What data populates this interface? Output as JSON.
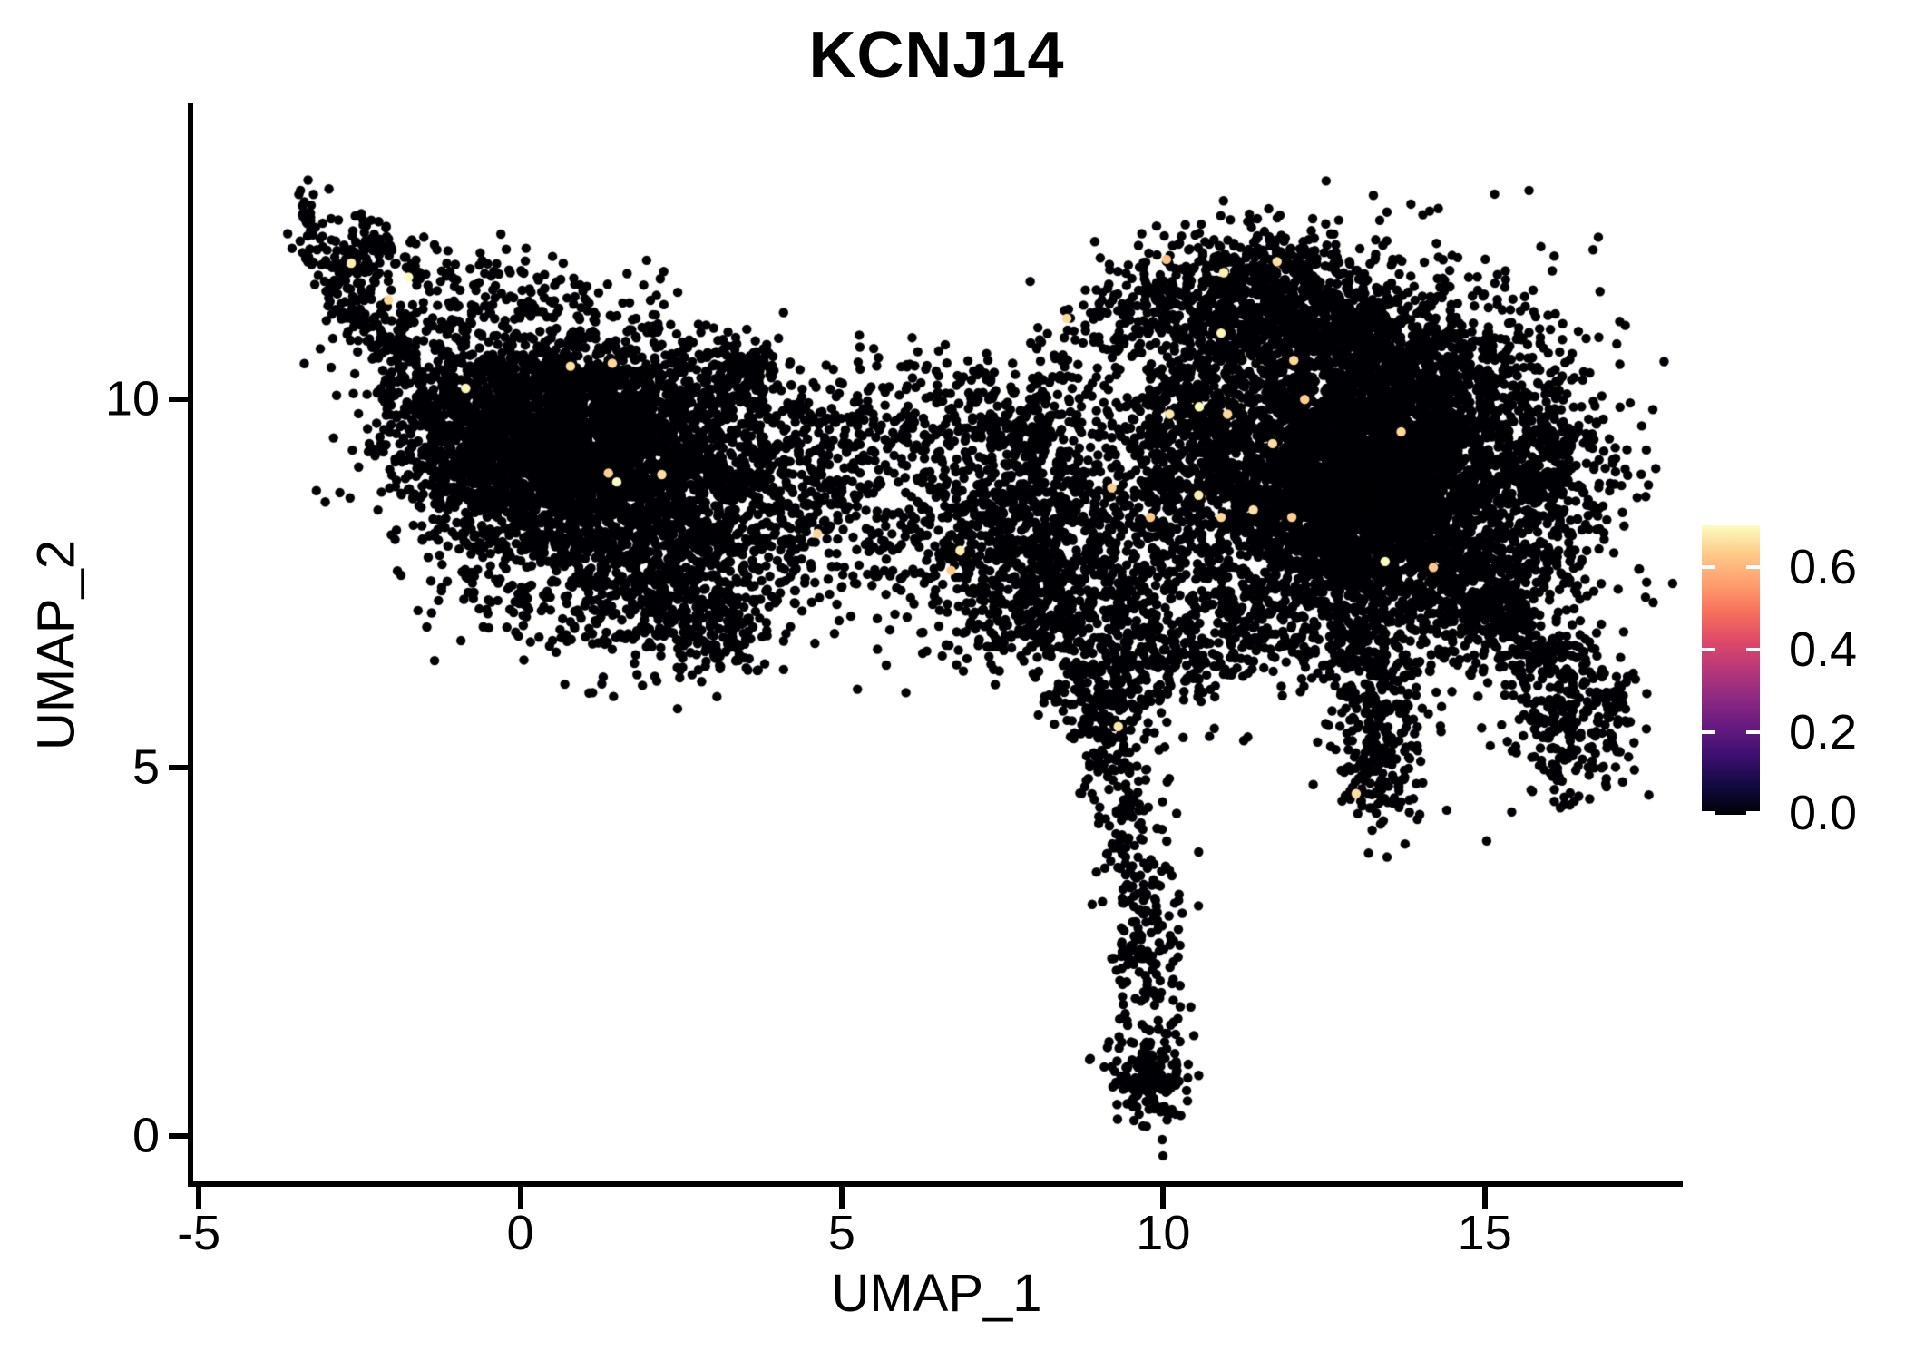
{
  "title": "KCNJ14",
  "chart_data": {
    "type": "scatter",
    "title": "KCNJ14",
    "xlabel": "UMAP_1",
    "ylabel": "UMAP_2",
    "xlim": [
      -5.13,
      18.08
    ],
    "ylim": [
      -0.65,
      13.98
    ],
    "x_ticks": [
      -5,
      0,
      5,
      10,
      15
    ],
    "x_tick_labels": [
      "-5",
      "0",
      "5",
      "10",
      "15"
    ],
    "y_ticks": [
      0,
      5,
      10
    ],
    "y_tick_labels": [
      "0",
      "5",
      "10"
    ],
    "grid": false,
    "background": "#ffffff",
    "axis_color": "#000000",
    "point_color": "#000004",
    "point_radius_px": 5.2,
    "seed": 42,
    "point_generation": "seeded gaussian-mixture approximation of UMAP embedding",
    "clusters": [
      {
        "kind": "path",
        "name": "topleft-tail",
        "pts": [
          [
            -3.35,
            12.72
          ],
          [
            -3.15,
            12.15
          ],
          [
            -2.8,
            11.5
          ],
          [
            -2.25,
            10.95
          ],
          [
            -1.75,
            10.6
          ]
        ],
        "w": 0.2,
        "n": 170
      },
      {
        "kind": "blob",
        "name": "topleft-clump",
        "cx": -2.4,
        "cy": 12.05,
        "sx": 0.2,
        "sy": 0.28,
        "n": 60
      },
      {
        "kind": "path",
        "name": "topleft-strand",
        "pts": [
          [
            -2.6,
            12.0
          ],
          [
            -1.6,
            11.8
          ],
          [
            -0.5,
            11.55
          ]
        ],
        "w": 0.17,
        "n": 50
      },
      {
        "kind": "blob",
        "name": "upper-left-blob",
        "cx": 0.0,
        "cy": 11.35,
        "sx": 0.55,
        "sy": 0.33,
        "n": 70
      },
      {
        "kind": "blob",
        "name": "upper-left-spray",
        "cx": -1.5,
        "cy": 11.1,
        "sx": 0.8,
        "sy": 0.45,
        "n": 90
      },
      {
        "kind": "blob",
        "name": "left-core",
        "cx": 1.2,
        "cy": 9.0,
        "sx": 1.35,
        "sy": 0.95,
        "n": 2500
      },
      {
        "kind": "blob",
        "name": "left-core-dense",
        "cx": 0.7,
        "cy": 9.55,
        "sx": 0.85,
        "sy": 0.6,
        "n": 900
      },
      {
        "kind": "blob",
        "name": "left-west-wing",
        "cx": -1.15,
        "cy": 9.85,
        "sx": 0.65,
        "sy": 0.5,
        "n": 320
      },
      {
        "kind": "blob",
        "name": "left-sw-edge",
        "cx": -0.7,
        "cy": 9.05,
        "sx": 0.6,
        "sy": 0.5,
        "n": 250
      },
      {
        "kind": "path",
        "name": "left-north-band",
        "pts": [
          [
            -0.9,
            10.35
          ],
          [
            0.8,
            10.3
          ],
          [
            2.4,
            10.15
          ],
          [
            3.3,
            10.3
          ]
        ],
        "w": 0.27,
        "n": 260
      },
      {
        "kind": "blob",
        "name": "left-ne-clump",
        "cx": 3.5,
        "cy": 10.42,
        "sx": 0.3,
        "sy": 0.22,
        "n": 130
      },
      {
        "kind": "blob",
        "name": "left-east-ext",
        "cx": 3.5,
        "cy": 8.7,
        "sx": 0.85,
        "sy": 0.8,
        "n": 420
      },
      {
        "kind": "blob",
        "name": "left-south-arm",
        "cx": 2.45,
        "cy": 7.3,
        "sx": 0.8,
        "sy": 0.5,
        "n": 300
      },
      {
        "kind": "blob",
        "name": "left-arm-tip",
        "cx": 2.95,
        "cy": 6.8,
        "sx": 0.4,
        "sy": 0.25,
        "n": 90
      },
      {
        "kind": "blob",
        "name": "bridge",
        "cx": 5.3,
        "cy": 8.5,
        "sx": 0.95,
        "sy": 0.85,
        "n": 190
      },
      {
        "kind": "path",
        "name": "bridge-top",
        "pts": [
          [
            4.4,
            9.9
          ],
          [
            5.5,
            9.75
          ],
          [
            6.3,
            9.55
          ]
        ],
        "w": 0.3,
        "n": 60
      },
      {
        "kind": "blob",
        "name": "bridge-top-spray",
        "cx": 6.0,
        "cy": 10.3,
        "sx": 0.4,
        "sy": 0.25,
        "n": 25
      },
      {
        "kind": "blob",
        "name": "bridge-west",
        "cx": 4.7,
        "cy": 9.1,
        "sx": 0.5,
        "sy": 0.5,
        "n": 60
      },
      {
        "kind": "blob",
        "name": "mid-core",
        "cx": 7.8,
        "cy": 8.15,
        "sx": 0.95,
        "sy": 0.8,
        "n": 900
      },
      {
        "kind": "blob",
        "name": "mid-top",
        "cx": 7.6,
        "cy": 9.8,
        "sx": 0.85,
        "sy": 0.5,
        "n": 240
      },
      {
        "kind": "path",
        "name": "mid-right-arc",
        "pts": [
          [
            8.2,
            10.55
          ],
          [
            9.0,
            11.15
          ],
          [
            9.9,
            11.55
          ],
          [
            10.6,
            11.8
          ]
        ],
        "w": 0.32,
        "n": 110
      },
      {
        "kind": "blob",
        "name": "mid-south",
        "cx": 8.1,
        "cy": 6.95,
        "sx": 0.6,
        "sy": 0.32,
        "n": 120
      },
      {
        "kind": "blob",
        "name": "neck",
        "cx": 9.95,
        "cy": 8.1,
        "sx": 0.65,
        "sy": 1.0,
        "n": 380
      },
      {
        "kind": "blob",
        "name": "neck-upper",
        "cx": 10.4,
        "cy": 9.6,
        "sx": 0.5,
        "sy": 0.6,
        "n": 200
      },
      {
        "kind": "blob",
        "name": "neck-lower",
        "cx": 10.5,
        "cy": 6.75,
        "sx": 0.38,
        "sy": 0.38,
        "n": 70
      },
      {
        "kind": "blob",
        "name": "right-core",
        "cx": 13.1,
        "cy": 9.1,
        "sx": 1.6,
        "sy": 1.2,
        "n": 3800
      },
      {
        "kind": "blob",
        "name": "right-core-dense",
        "cx": 13.3,
        "cy": 8.8,
        "sx": 0.95,
        "sy": 0.75,
        "n": 1600
      },
      {
        "kind": "blob",
        "name": "right-top-lobe",
        "cx": 11.45,
        "cy": 11.5,
        "sx": 0.78,
        "sy": 0.45,
        "n": 430
      },
      {
        "kind": "blob",
        "name": "right-top-lobe2",
        "cx": 12.5,
        "cy": 11.1,
        "sx": 0.6,
        "sy": 0.42,
        "n": 260
      },
      {
        "kind": "blob",
        "name": "right-ne-shelf",
        "cx": 14.0,
        "cy": 10.55,
        "sx": 0.85,
        "sy": 0.45,
        "n": 300
      },
      {
        "kind": "blob",
        "name": "right-east-edge",
        "cx": 15.9,
        "cy": 8.7,
        "sx": 0.55,
        "sy": 0.8,
        "n": 340
      },
      {
        "kind": "blob",
        "name": "right-nw-spray",
        "cx": 10.8,
        "cy": 10.9,
        "sx": 0.55,
        "sy": 0.55,
        "n": 220
      },
      {
        "kind": "blob",
        "name": "right-se-slope",
        "cx": 14.9,
        "cy": 7.35,
        "sx": 0.6,
        "sy": 0.5,
        "n": 260
      },
      {
        "kind": "blob",
        "name": "right-sw-fringe",
        "cx": 11.5,
        "cy": 7.0,
        "sx": 0.5,
        "sy": 0.35,
        "n": 110
      },
      {
        "kind": "blob",
        "name": "right-s-fringe",
        "cx": 12.8,
        "cy": 6.6,
        "sx": 0.4,
        "sy": 0.3,
        "n": 70
      },
      {
        "kind": "blob",
        "name": "hang-cluster",
        "cx": 13.3,
        "cy": 5.9,
        "sx": 0.38,
        "sy": 0.75,
        "n": 280
      },
      {
        "kind": "blob",
        "name": "hang-tip",
        "cx": 13.4,
        "cy": 4.8,
        "sx": 0.26,
        "sy": 0.3,
        "n": 60
      },
      {
        "kind": "path",
        "name": "br-tail-stream",
        "pts": [
          [
            14.9,
            7.35
          ],
          [
            15.5,
            6.85
          ],
          [
            16.0,
            6.35
          ]
        ],
        "w": 0.27,
        "n": 140
      },
      {
        "kind": "blob",
        "name": "br-tail-blob",
        "cx": 16.35,
        "cy": 5.65,
        "sx": 0.42,
        "sy": 0.55,
        "n": 260
      },
      {
        "kind": "blob",
        "name": "br-tail-outliers",
        "cx": 17.1,
        "cy": 5.7,
        "sx": 0.16,
        "sy": 0.45,
        "n": 25
      },
      {
        "kind": "blob",
        "name": "spike-funnel",
        "cx": 9.4,
        "cy": 6.5,
        "sx": 0.65,
        "sy": 0.45,
        "n": 180
      },
      {
        "kind": "path",
        "name": "spike",
        "pts": [
          [
            9.15,
            6.3
          ],
          [
            9.25,
            5.4
          ],
          [
            9.45,
            4.4
          ],
          [
            9.65,
            3.4
          ],
          [
            9.75,
            2.5
          ],
          [
            9.85,
            1.6
          ]
        ],
        "w": 0.29,
        "n": 340
      },
      {
        "kind": "blob",
        "name": "spike-bottom-blob",
        "cx": 9.8,
        "cy": 0.9,
        "sx": 0.33,
        "sy": 0.33,
        "n": 170
      },
      {
        "kind": "blob",
        "name": "spike-west-wing",
        "cx": 8.85,
        "cy": 5.9,
        "sx": 0.3,
        "sy": 0.55,
        "n": 70
      }
    ],
    "highlight_points": [
      {
        "x": -2.63,
        "y": 11.85,
        "value": 0.68
      },
      {
        "x": -2.05,
        "y": 11.35,
        "value": 0.65
      },
      {
        "x": -1.74,
        "y": 11.66,
        "value": 0.7
      },
      {
        "x": -0.85,
        "y": 10.15,
        "value": 0.69
      },
      {
        "x": 0.78,
        "y": 10.45,
        "value": 0.66
      },
      {
        "x": 1.43,
        "y": 10.49,
        "value": 0.65
      },
      {
        "x": 1.5,
        "y": 8.88,
        "value": 0.7
      },
      {
        "x": 1.37,
        "y": 9.0,
        "value": 0.64
      },
      {
        "x": 2.2,
        "y": 8.98,
        "value": 0.66
      },
      {
        "x": 4.62,
        "y": 8.18,
        "value": 0.65
      },
      {
        "x": 6.84,
        "y": 7.95,
        "value": 0.68
      },
      {
        "x": 6.7,
        "y": 7.68,
        "value": 0.63
      },
      {
        "x": 8.5,
        "y": 11.1,
        "value": 0.65
      },
      {
        "x": 10.94,
        "y": 11.72,
        "value": 0.68
      },
      {
        "x": 11.77,
        "y": 11.87,
        "value": 0.66
      },
      {
        "x": 10.05,
        "y": 11.9,
        "value": 0.62
      },
      {
        "x": 10.9,
        "y": 10.9,
        "value": 0.69
      },
      {
        "x": 12.03,
        "y": 10.53,
        "value": 0.65
      },
      {
        "x": 10.56,
        "y": 9.9,
        "value": 0.7
      },
      {
        "x": 12.2,
        "y": 10.0,
        "value": 0.64
      },
      {
        "x": 10.1,
        "y": 9.8,
        "value": 0.67
      },
      {
        "x": 11.0,
        "y": 9.8,
        "value": 0.65
      },
      {
        "x": 11.7,
        "y": 9.4,
        "value": 0.66
      },
      {
        "x": 13.7,
        "y": 9.56,
        "value": 0.65
      },
      {
        "x": 9.2,
        "y": 8.8,
        "value": 0.64
      },
      {
        "x": 10.55,
        "y": 8.7,
        "value": 0.68
      },
      {
        "x": 9.8,
        "y": 8.4,
        "value": 0.63
      },
      {
        "x": 11.4,
        "y": 8.5,
        "value": 0.66
      },
      {
        "x": 10.9,
        "y": 8.4,
        "value": 0.65
      },
      {
        "x": 12.0,
        "y": 8.4,
        "value": 0.64
      },
      {
        "x": 13.45,
        "y": 7.8,
        "value": 0.7
      },
      {
        "x": 14.2,
        "y": 7.72,
        "value": 0.63
      },
      {
        "x": 9.3,
        "y": 5.56,
        "value": 0.67
      },
      {
        "x": 13.0,
        "y": 4.65,
        "value": 0.66
      }
    ],
    "colorbar": {
      "position": "right",
      "vmin": 0.0,
      "vmax": 0.7,
      "ticks": [
        0.6,
        0.4,
        0.2,
        0.0
      ],
      "tick_labels": [
        "0.6",
        "0.4",
        "0.2",
        "0.0"
      ],
      "tick_color": "#ffffff",
      "colormap_name": "magma",
      "colormap": [
        [
          0.0,
          "#000004"
        ],
        [
          0.1,
          "#110a40"
        ],
        [
          0.2,
          "#3b0f70"
        ],
        [
          0.3,
          "#641a80"
        ],
        [
          0.4,
          "#8c2981"
        ],
        [
          0.5,
          "#b73779"
        ],
        [
          0.6,
          "#de4968"
        ],
        [
          0.7,
          "#f7705c"
        ],
        [
          0.8,
          "#fe9f6d"
        ],
        [
          0.9,
          "#fec988"
        ],
        [
          1.0,
          "#fcfdbf"
        ]
      ]
    }
  }
}
